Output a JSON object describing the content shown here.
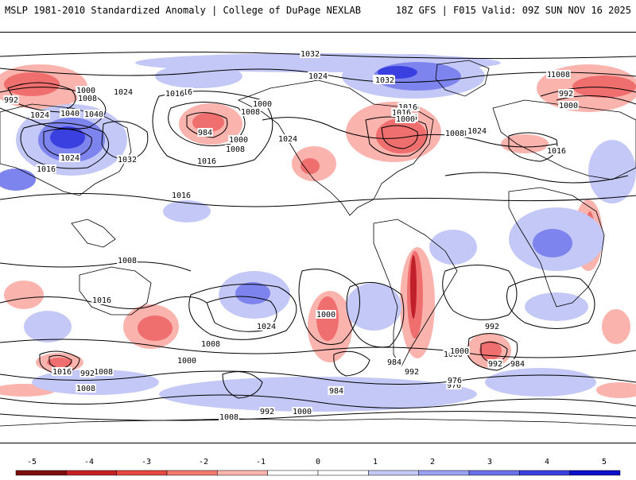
{
  "header": {
    "left_title": "MSLP 1981-2010 Standardized Anomaly | College of DuPage NEXLAB",
    "right_title": "18Z GFS | F015 Valid: 09Z SUN NOV 16 2025"
  },
  "map": {
    "contour_labels": [
      "1032",
      "1024",
      "1032",
      "1008",
      "1000",
      "1024",
      "1040",
      "1008",
      "1016",
      "992",
      "1024",
      "1032",
      "1040",
      "1024",
      "1016",
      "1000",
      "1008",
      "984",
      "1008",
      "1000",
      "1016",
      "1024",
      "1032",
      "1016",
      "1016",
      "1016",
      "1016",
      "1016",
      "1008",
      "1008",
      "1016",
      "1008",
      "1016",
      "1008",
      "1000",
      "1016",
      "1024",
      "1000",
      "1024",
      "992",
      "1016",
      "1008",
      "1016",
      "1024",
      "1008",
      "1000",
      "992",
      "984",
      "976",
      "1000",
      "992",
      "984",
      "992",
      "1000",
      "1008",
      "1016",
      "976",
      "992",
      "984",
      "1000",
      "984",
      "1008",
      "992",
      "1000",
      "1008"
    ],
    "colors": {
      "strong_negative": "#c0202a",
      "negative": "#ef6e6e",
      "weak_negative": "#fbb3ad",
      "weak_positive": "#c4c8f6",
      "positive": "#7d84ee",
      "strong_positive": "#3a3fe0",
      "land_outline": "#000000",
      "contour": "#000000"
    }
  },
  "colorbar": {
    "ticks": [
      "-5",
      "-4",
      "-3",
      "-2",
      "-1",
      "0",
      "1",
      "2",
      "3",
      "4",
      "5"
    ],
    "colors": [
      "#7d0d0d",
      "#c42026",
      "#e8473f",
      "#f47a6f",
      "#fbb3ad",
      "#ffffff",
      "#ffffff",
      "#c4c8f6",
      "#9aa0f2",
      "#6b71ea",
      "#3a3fe0",
      "#0b0dc8"
    ]
  }
}
